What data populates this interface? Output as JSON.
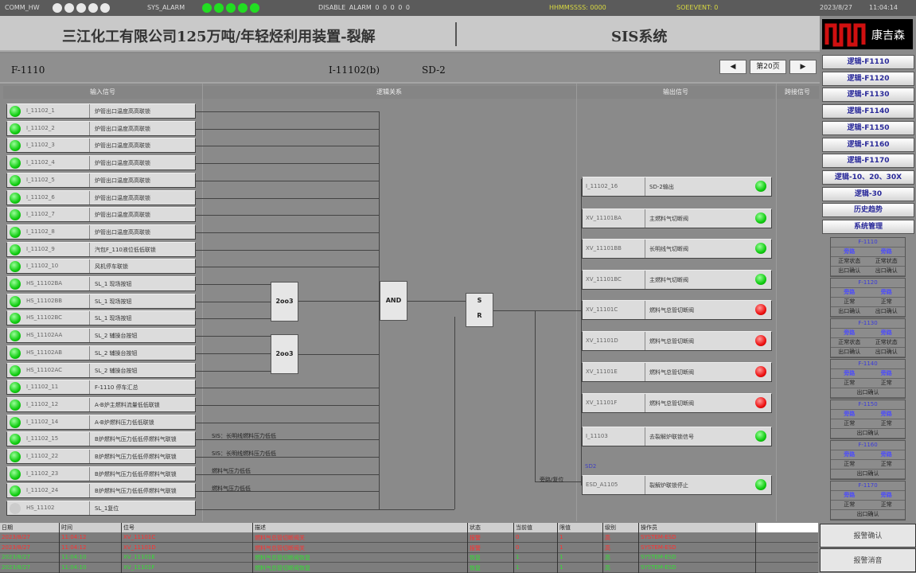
{
  "status_bar": {
    "comm_label": "COMM_HW",
    "comm_leds": [
      "#e8e8e8",
      "#e8e8e8",
      "#e8e8e8",
      "#e8e8e8",
      "#e8e8e8"
    ],
    "sys_alarm_label": "SYS_ALARM",
    "sys_leds": [
      "#22dd22",
      "#22dd22",
      "#22dd22",
      "#22dd22",
      "#22dd22"
    ],
    "disable_alarm": "DISABLE ALARM 0    0    0    0    0",
    "yellow_1": "HHMMSSSS: 0000",
    "yellow_2": "SOEEVENT: 0",
    "date": "2023/8/27",
    "time": "11:04:14"
  },
  "header": {
    "title": "三江化工有限公司125万吨/年轻烃利用装置-裂解",
    "system": "SIS系统",
    "logo_text": "康吉森"
  },
  "subheader": {
    "left": "F-1110",
    "center": "I-11102(b)",
    "sd": "SD-2",
    "prev_icon": "arrow-left",
    "page_label": "第20页",
    "next_icon": "arrow-right"
  },
  "columns": {
    "input": "输入信号",
    "logic": "逻辑关系",
    "output": "输出信号",
    "bypass": "跨接信号"
  },
  "inputs": [
    {
      "tag": "I_11102_1",
      "desc": "炉管出口温度高高联锁",
      "state": "green"
    },
    {
      "tag": "I_11102_2",
      "desc": "炉管出口温度高高联锁",
      "state": "green"
    },
    {
      "tag": "I_11102_3",
      "desc": "炉管出口温度高高联锁",
      "state": "green"
    },
    {
      "tag": "I_11102_4",
      "desc": "炉管出口温度高高联锁",
      "state": "green"
    },
    {
      "tag": "I_11102_5",
      "desc": "炉管出口温度高高联锁",
      "state": "green"
    },
    {
      "tag": "I_11102_6",
      "desc": "炉管出口温度高高联锁",
      "state": "green"
    },
    {
      "tag": "I_11102_7",
      "desc": "炉管出口温度高高联锁",
      "state": "green"
    },
    {
      "tag": "I_11102_8",
      "desc": "炉管出口温度高高联锁",
      "state": "green"
    },
    {
      "tag": "I_11102_9",
      "desc": "汽包F_110液位低低联锁",
      "state": "green"
    },
    {
      "tag": "I_11102_10",
      "desc": "风机停车联锁",
      "state": "green"
    },
    {
      "tag": "HS_11102BA",
      "desc": "SL_1 现场按钮",
      "state": "green"
    },
    {
      "tag": "HS_11102BB",
      "desc": "SL_1 现场按钮",
      "state": "green"
    },
    {
      "tag": "HS_11102BC",
      "desc": "SL_1 现场按钮",
      "state": "green"
    },
    {
      "tag": "HS_11102AA",
      "desc": "SL_2 辅操台按钮",
      "state": "green"
    },
    {
      "tag": "HS_11102AB",
      "desc": "SL_2 辅操台按钮",
      "state": "green"
    },
    {
      "tag": "HS_11102AC",
      "desc": "SL_2 辅操台按钮",
      "state": "green"
    },
    {
      "tag": "I_11102_11",
      "desc": "F-1110 停车汇总",
      "state": "green"
    },
    {
      "tag": "I_11102_12",
      "desc": "A-B炉主燃料流量低低联锁",
      "state": "green"
    },
    {
      "tag": "I_11102_14",
      "desc": "A-B炉燃料压力低低联锁",
      "state": "green"
    },
    {
      "tag": "I_11102_15",
      "desc": "B炉燃料气压力低低停燃料气联锁",
      "state": "green"
    },
    {
      "tag": "I_11102_22",
      "desc": "B炉燃料气压力低低停燃料气联锁",
      "state": "green"
    },
    {
      "tag": "I_11102_23",
      "desc": "B炉燃料气压力低低停燃料气联锁",
      "state": "green"
    },
    {
      "tag": "I_11102_24",
      "desc": "B炉燃料气压力低低停燃料气联锁",
      "state": "green"
    },
    {
      "tag": "HS_11102",
      "desc": "SL_1复位",
      "state": "off"
    }
  ],
  "logic": {
    "vote1": "2oo3",
    "vote2": "2oo3",
    "and": "AND",
    "latch_top": "S",
    "latch_bottom": "R",
    "notes": [
      "SIS：长明线燃料压力低低",
      "SIS：长明线燃料压力低低",
      "燃料气压力低低",
      "燃料气压力低低"
    ],
    "reset_label": "旁路/复位"
  },
  "outputs": [
    {
      "tag": "I_11102_16",
      "desc": "SD-2输出",
      "state": "green"
    },
    {
      "tag": "XV_11101BA",
      "desc": "主燃料气切断阀",
      "state": "green"
    },
    {
      "tag": "XV_11101BB",
      "desc": "长明线气切断阀",
      "state": "green"
    },
    {
      "tag": "XV_11101BC",
      "desc": "主燃料气切断阀",
      "state": "green"
    },
    {
      "tag": "XV_11101C",
      "desc": "燃料气总管切断阀",
      "state": "red"
    },
    {
      "tag": "XV_11101D",
      "desc": "燃料气总管切断阀",
      "state": "red"
    },
    {
      "tag": "XV_11101E",
      "desc": "燃料气总管切断阀",
      "state": "red"
    },
    {
      "tag": "XV_11101F",
      "desc": "燃料气总管切断阀",
      "state": "red"
    },
    {
      "tag": "I_11103",
      "desc": "去裂解炉联锁信号",
      "state": "green"
    },
    {
      "tag": "ESD_A1105",
      "desc": "裂解炉联锁停止",
      "state": "green"
    }
  ],
  "output_note": "SD2",
  "nav": [
    "逻辑-F1110",
    "逻辑-F1120",
    "逻辑-F1130",
    "逻辑-F1140",
    "逻辑-F1150",
    "逻辑-F1160",
    "逻辑-F1170",
    "逻辑-10、20、30X",
    "逻辑-30",
    "历史趋势",
    "系统管理"
  ],
  "groups": [
    {
      "title": "F-1110",
      "a": "旁路",
      "b": "旁路",
      "c": "正常状态",
      "d": "正常状态",
      "e": "出口确认",
      "f": "出口确认"
    },
    {
      "title": "F-1120",
      "a": "旁路",
      "b": "旁路",
      "c": "正常",
      "d": "正常",
      "e": "出口确认",
      "f": "出口确认"
    },
    {
      "title": "F-1130",
      "a": "旁路",
      "b": "旁路",
      "c": "正常状态",
      "d": "正常状态",
      "e": "出口确认",
      "f": "出口确认"
    },
    {
      "title": "F-1140",
      "a": "旁路",
      "b": "旁路",
      "c": "正常",
      "d": "正常",
      "e": "出口确认"
    },
    {
      "title": "F-1150",
      "a": "旁路",
      "b": "旁路",
      "c": "正常",
      "d": "正常",
      "e": "出口确认"
    },
    {
      "title": "F-1160",
      "a": "旁路",
      "b": "旁路",
      "c": "正常",
      "d": "正常",
      "e": "出口确认"
    },
    {
      "title": "F-1170",
      "a": "旁路",
      "b": "旁路",
      "c": "正常",
      "d": "正常",
      "e": "出口确认"
    }
  ],
  "alarm_table": {
    "headers": [
      "日期",
      "时间",
      "位号",
      "描述",
      "状态",
      "当前值",
      "限值",
      "级别",
      "操作员"
    ],
    "rows": [
      {
        "color": "#ff3030",
        "cells": [
          "2023/8/27",
          "11:04:12",
          "XV_11101C",
          "燃料气总管切断阀关",
          "报警",
          "0",
          "1",
          "高",
          "SYSTEM-ESD"
        ]
      },
      {
        "color": "#ff3030",
        "cells": [
          "2023/8/27",
          "11:04:12",
          "XV_11101D",
          "燃料气总管切断阀关",
          "报警",
          "0",
          "1",
          "高",
          "SYSTEM-ESD"
        ]
      },
      {
        "color": "#33dd33",
        "cells": [
          "2023/8/27",
          "11:04:10",
          "XV_11101E",
          "燃料气总管切断阀恢复",
          "恢复",
          "1",
          "1",
          "高",
          "SYSTEM-ESD"
        ]
      },
      {
        "color": "#33dd33",
        "cells": [
          "2023/8/27",
          "11:04:10",
          "XV_11101F",
          "燃料气总管切断阀恢复",
          "恢复",
          "1",
          "1",
          "高",
          "SYSTEM-ESD"
        ]
      }
    ]
  },
  "buttons": {
    "ack": "报警确认",
    "silence": "报警消音"
  }
}
